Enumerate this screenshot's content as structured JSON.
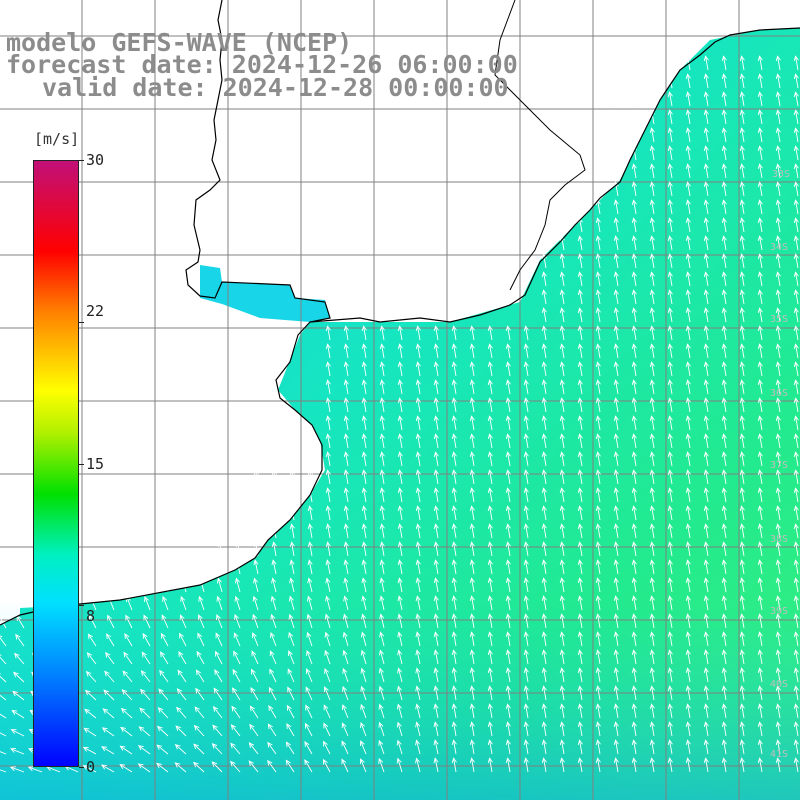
{
  "header": {
    "line1": "modelo GEFS-WAVE (NCEP)",
    "line2": "forecast date: 2024-12-26 06:00:00",
    "line3": "valid date: 2024-12-28 00:00:00"
  },
  "colorbar": {
    "unit": "[m/s]",
    "ticks": [
      "30",
      "22",
      "15",
      "8",
      "0"
    ],
    "tick_values": [
      30,
      22,
      15,
      8,
      0
    ],
    "range": [
      0,
      30
    ]
  },
  "colors": {
    "land": "#ffffff",
    "grid": "#808080",
    "coast": "#000000",
    "arrow": "#ffffff",
    "title": "#8c8c8c"
  },
  "legend_position": "left",
  "map_overlay": {
    "variable": "wind speed with direction arrows",
    "prevailing_direction": "from south-east",
    "speed_range_shown": [
      6,
      14
    ]
  }
}
